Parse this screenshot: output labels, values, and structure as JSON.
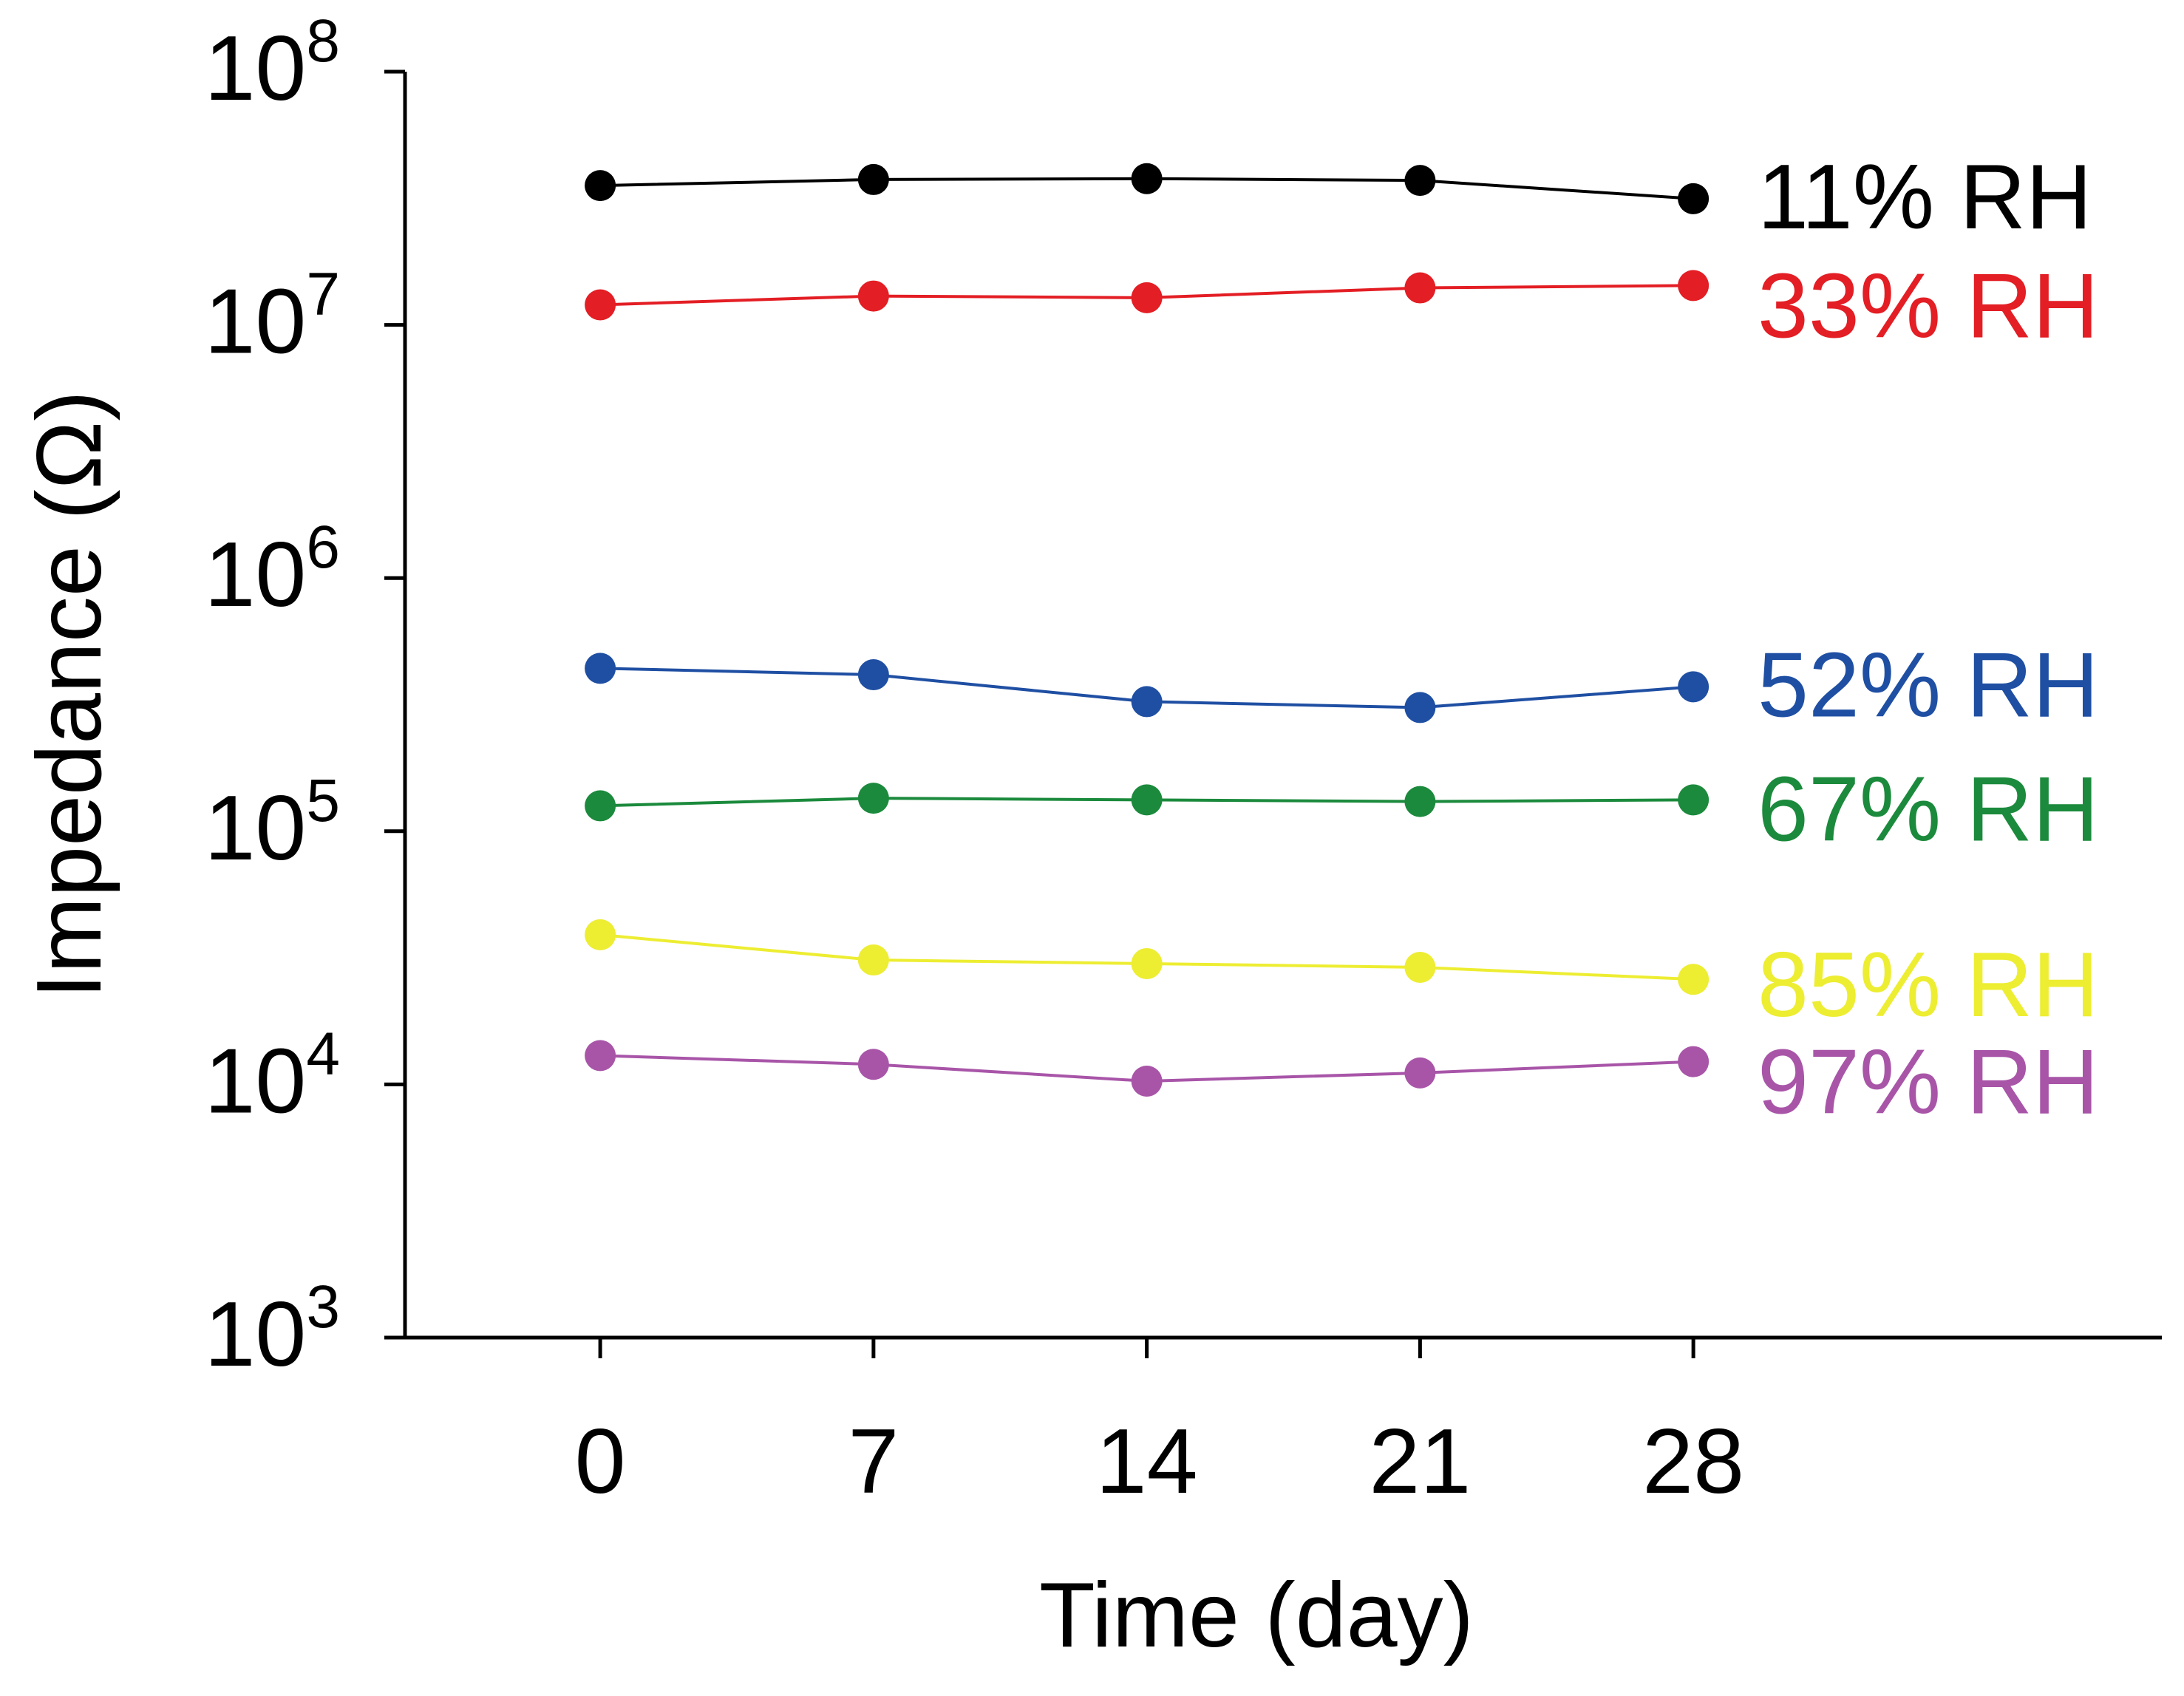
{
  "chart_data": {
    "type": "line",
    "title": "",
    "xlabel": "Time (day)",
    "ylabel": "Impedance (Ω)",
    "x": [
      0,
      7,
      14,
      21,
      28
    ],
    "xlim": [
      -5,
      40
    ],
    "ylim": [
      1000,
      100000000
    ],
    "yscale": "log",
    "y_ticks": [
      {
        "base": "10",
        "exp": "3",
        "value": 1000
      },
      {
        "base": "10",
        "exp": "4",
        "value": 10000
      },
      {
        "base": "10",
        "exp": "5",
        "value": 100000
      },
      {
        "base": "10",
        "exp": "6",
        "value": 1000000
      },
      {
        "base": "10",
        "exp": "7",
        "value": 10000000
      },
      {
        "base": "10",
        "exp": "8",
        "value": 100000000
      }
    ],
    "x_tick_labels": [
      "0",
      "7",
      "14",
      "21",
      "28"
    ],
    "legend_placement": "right of each series",
    "grid": false,
    "series": [
      {
        "name": "11% RH",
        "color": "#000000",
        "values": [
          35500000,
          37500000,
          37800000,
          37200000,
          31500000
        ]
      },
      {
        "name": "33% RH",
        "color": "#e31e24",
        "values": [
          12000000,
          13000000,
          12800000,
          14000000,
          14300000
        ]
      },
      {
        "name": "52% RH",
        "color": "#1f4fa3",
        "values": [
          440000,
          415000,
          325000,
          308000,
          372000
        ]
      },
      {
        "name": "67% RH",
        "color": "#1b8a3c",
        "values": [
          126000,
          135000,
          133000,
          131000,
          133000
        ]
      },
      {
        "name": "85% RH",
        "color": "#eded32",
        "values": [
          39000,
          31000,
          30000,
          29000,
          26000
        ]
      },
      {
        "name": "97% RH",
        "color": "#a855a8",
        "values": [
          13000,
          12000,
          10300,
          11100,
          12300
        ]
      }
    ]
  }
}
